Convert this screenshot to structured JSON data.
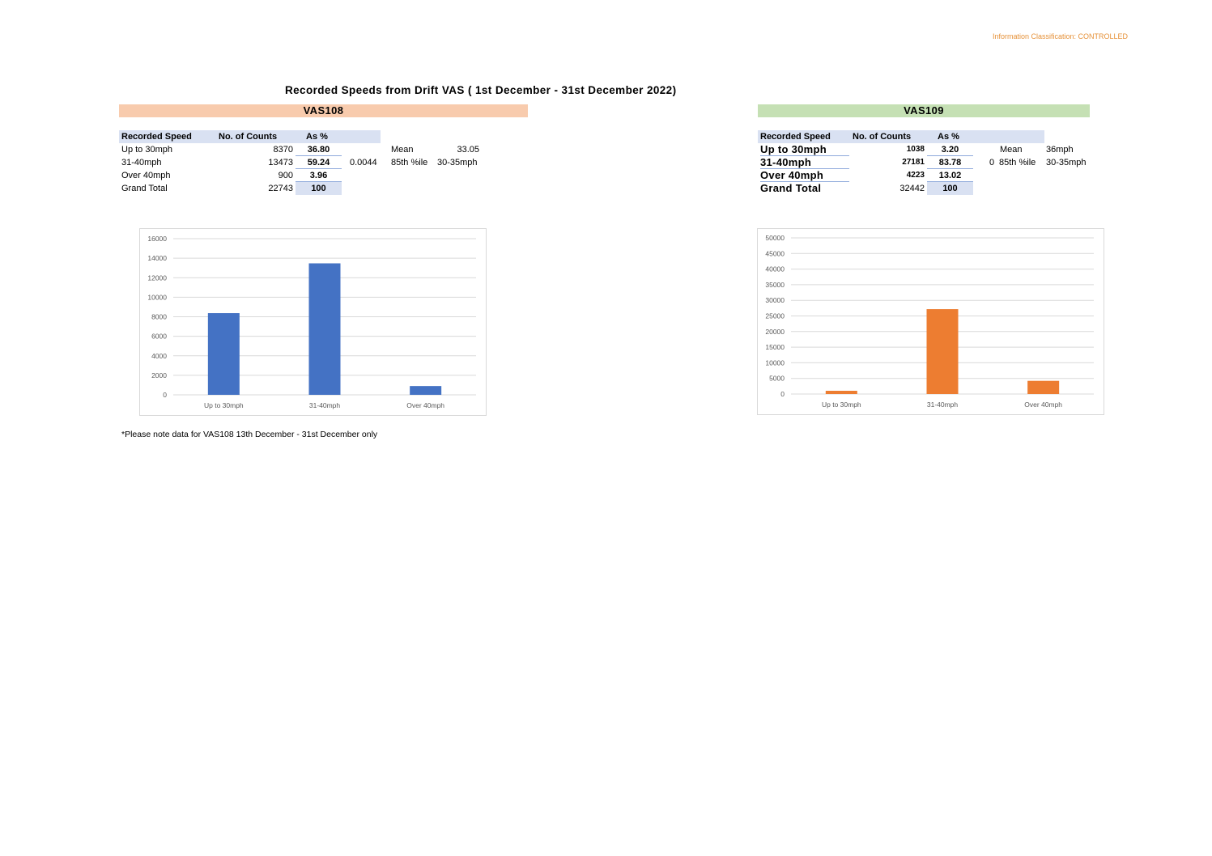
{
  "header": {
    "classification": "Information Classification: CONTROLLED",
    "title": "Recorded Speeds from Drift VAS ( 1st December - 31st December 2022)"
  },
  "vas108": {
    "band": "VAS108",
    "col_speed": "Recorded Speed",
    "col_counts": "No. of Counts",
    "col_pct": "As %",
    "rows": [
      {
        "label": "Up to 30mph",
        "count": "8370",
        "pct": "36.80"
      },
      {
        "label": "31-40mph",
        "count": "13473",
        "pct": "59.24"
      },
      {
        "label": "Over 40mph",
        "count": "900",
        "pct": "3.96"
      }
    ],
    "total": {
      "label": "Grand Total",
      "count": "22743",
      "pct": "100"
    },
    "extra_value": "0.0044",
    "mean_label": "Mean",
    "mean_value": "33.05",
    "p85_label": "85th %ile",
    "p85_value": "30-35mph",
    "accent": "#f8cbad"
  },
  "vas109": {
    "band": "VAS109",
    "col_speed": "Recorded Speed",
    "col_counts": "No. of Counts",
    "col_pct": "As %",
    "rows": [
      {
        "label": "Up to 30mph",
        "count": "1038",
        "pct": "3.20"
      },
      {
        "label": "31-40mph",
        "count": "27181",
        "pct": "83.78"
      },
      {
        "label": "Over 40mph",
        "count": "4223",
        "pct": "13.02"
      }
    ],
    "total": {
      "label": "Grand Total",
      "count": "32442",
      "pct": "100"
    },
    "extra_value": "0",
    "mean_label": "Mean",
    "mean_value": "36mph",
    "p85_label": "85th %ile",
    "p85_value": "30-35mph",
    "accent": "#c5e0b4"
  },
  "note": "*Please note data for VAS108 13th December - 31st December only",
  "chart_data": [
    {
      "type": "bar",
      "categories": [
        "Up to 30mph",
        "31-40mph",
        "Over 40mph"
      ],
      "values": [
        8370,
        13473,
        900
      ],
      "ylim": [
        0,
        16000
      ],
      "yticks": [
        0,
        2000,
        4000,
        6000,
        8000,
        10000,
        12000,
        14000,
        16000
      ],
      "color": "#4472c4",
      "grid": true,
      "title": "",
      "xlabel": "",
      "ylabel": ""
    },
    {
      "type": "bar",
      "categories": [
        "Up to 30mph",
        "31-40mph",
        "Over 40mph"
      ],
      "values": [
        1038,
        27181,
        4223
      ],
      "ylim": [
        0,
        50000
      ],
      "yticks": [
        0,
        5000,
        10000,
        15000,
        20000,
        25000,
        30000,
        35000,
        40000,
        45000,
        50000
      ],
      "color": "#ed7d31",
      "grid": true,
      "title": "",
      "xlabel": "",
      "ylabel": ""
    }
  ]
}
